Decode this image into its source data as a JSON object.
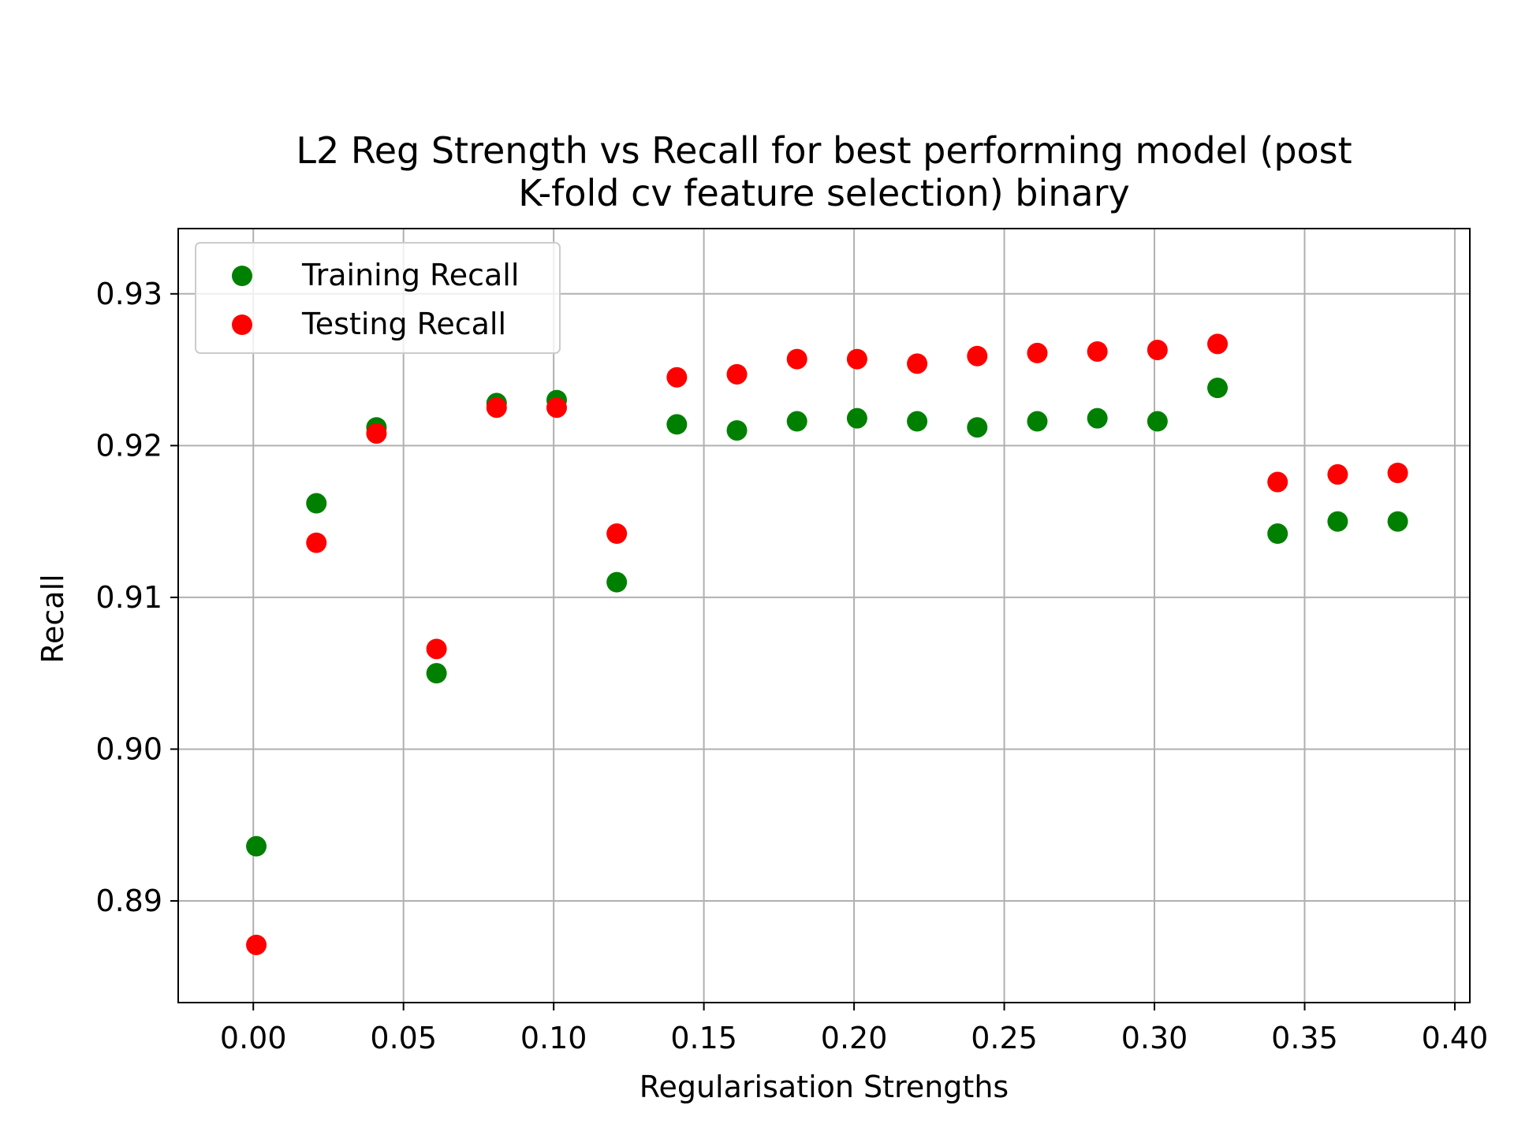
{
  "chart_data": {
    "type": "scatter",
    "title": [
      "L2 Reg Strength vs Recall for best performing model (post",
      "K-fold cv feature selection) binary"
    ],
    "xlabel": "Regularisation Strengths",
    "ylabel": "Recall",
    "xlim": [
      -0.025,
      0.405
    ],
    "ylim": [
      0.8833,
      0.9343
    ],
    "xticks": [
      0.0,
      0.05,
      0.1,
      0.15,
      0.2,
      0.25,
      0.3,
      0.35,
      0.4
    ],
    "xtick_labels": [
      "0.00",
      "0.05",
      "0.10",
      "0.15",
      "0.20",
      "0.25",
      "0.30",
      "0.35",
      "0.40"
    ],
    "yticks": [
      0.89,
      0.9,
      0.91,
      0.92,
      0.93
    ],
    "ytick_labels": [
      "0.89",
      "0.90",
      "0.91",
      "0.92",
      "0.93"
    ],
    "grid": true,
    "legend_position": "top-left",
    "x": [
      0.001,
      0.021,
      0.041,
      0.061,
      0.081,
      0.101,
      0.121,
      0.141,
      0.161,
      0.181,
      0.201,
      0.221,
      0.241,
      0.261,
      0.281,
      0.301,
      0.321,
      0.341,
      0.361,
      0.381
    ],
    "series": [
      {
        "name": "Training Recall",
        "color": "#008000",
        "values": [
          0.8936,
          0.9162,
          0.9212,
          0.905,
          0.9228,
          0.923,
          0.911,
          0.9214,
          0.921,
          0.9216,
          0.9218,
          0.9216,
          0.9212,
          0.9216,
          0.9218,
          0.9216,
          0.9238,
          0.9142,
          0.915,
          0.915
        ]
      },
      {
        "name": "Testing Recall",
        "color": "#ff0000",
        "values": [
          0.8871,
          0.9136,
          0.9208,
          0.9066,
          0.9225,
          0.9225,
          0.9142,
          0.9245,
          0.9247,
          0.9257,
          0.9257,
          0.9254,
          0.9259,
          0.9261,
          0.9262,
          0.9263,
          0.9267,
          0.9176,
          0.9181,
          0.9182
        ]
      }
    ]
  }
}
